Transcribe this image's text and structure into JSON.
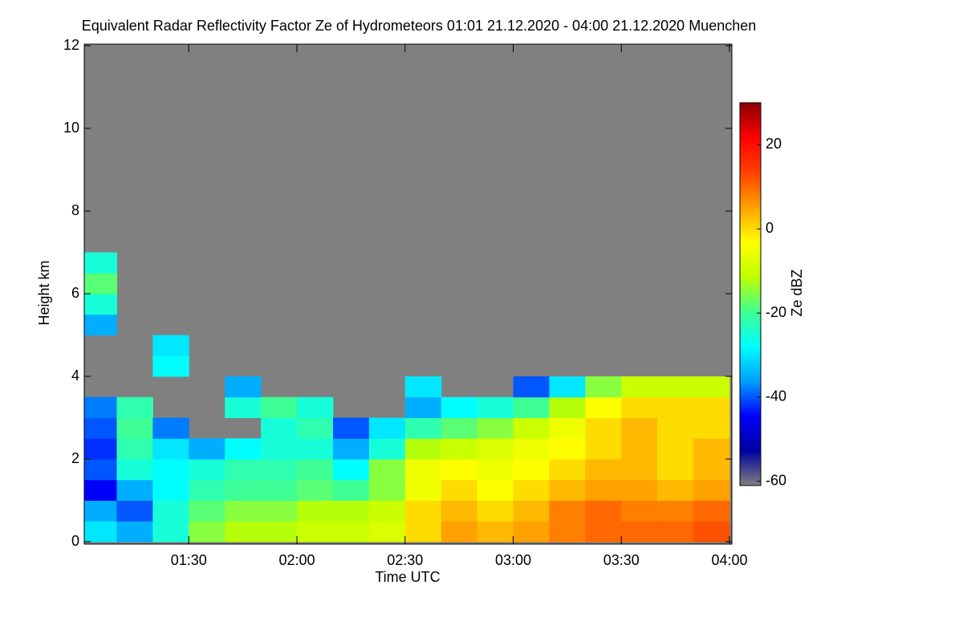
{
  "chart_data": {
    "type": "heatmap",
    "title": "Equivalent Radar Reflectivity Factor Ze of Hydrometeors   01:01 21.12.2020 - 04:00 21.12.2020 Muenchen",
    "x_label": "Time UTC",
    "y_label": "Height km",
    "colorbar_label": "Ze dBZ",
    "xlim": [
      "01:01",
      "04:00"
    ],
    "xticks": [
      "01:30",
      "02:00",
      "02:30",
      "03:00",
      "03:30",
      "04:00"
    ],
    "ylim": [
      0,
      12
    ],
    "yticks": [
      0,
      2,
      4,
      6,
      8,
      10,
      12
    ],
    "zlim": [
      -61,
      30
    ],
    "zticks": [
      -60,
      -40,
      -20,
      0,
      20
    ],
    "background": "#808080",
    "colorscale": [
      "#808080",
      "#0000a0",
      "#0000ff",
      "#00a0ff",
      "#00ffff",
      "#40ff90",
      "#c0ff00",
      "#ffff00",
      "#ffa000",
      "#ff4000",
      "#ff0000",
      "#8b0000"
    ],
    "x_bins": [
      "01:01",
      "01:10",
      "01:20",
      "01:30",
      "01:40",
      "01:50",
      "02:00",
      "02:10",
      "02:20",
      "02:30",
      "02:40",
      "02:50",
      "03:00",
      "03:10",
      "03:20",
      "03:30",
      "03:40",
      "03:50",
      "04:00"
    ],
    "y_bins": [
      0,
      0.5,
      1,
      1.5,
      2,
      2.5,
      3,
      3.5,
      4,
      4.5,
      5,
      5.5,
      6,
      6.5,
      7
    ],
    "values": [
      [
        -30,
        -35,
        -25,
        -15,
        -12,
        -12,
        -10,
        -10,
        -8,
        0,
        5,
        3,
        5,
        8,
        10,
        10,
        10,
        12
      ],
      [
        -35,
        -40,
        -25,
        -18,
        -15,
        -15,
        -12,
        -12,
        -10,
        0,
        3,
        0,
        3,
        8,
        10,
        8,
        8,
        10
      ],
      [
        -45,
        -35,
        -28,
        -22,
        -20,
        -20,
        -18,
        -20,
        -15,
        -5,
        0,
        -3,
        0,
        3,
        5,
        5,
        3,
        5
      ],
      [
        -40,
        -25,
        -28,
        -25,
        -22,
        -22,
        -20,
        -28,
        -15,
        -5,
        -3,
        -5,
        -3,
        0,
        3,
        3,
        0,
        3
      ],
      [
        -42,
        -22,
        -30,
        -35,
        -28,
        -25,
        -25,
        -35,
        -25,
        -12,
        -10,
        -8,
        -5,
        -3,
        0,
        3,
        0,
        3
      ],
      [
        -40,
        -20,
        -38,
        null,
        null,
        -25,
        -22,
        -40,
        -30,
        -22,
        -18,
        -15,
        -10,
        -5,
        0,
        3,
        0,
        0
      ],
      [
        -38,
        -22,
        null,
        null,
        -25,
        -20,
        -25,
        null,
        null,
        -35,
        -28,
        -25,
        -20,
        -12,
        -3,
        0,
        0,
        0
      ],
      [
        null,
        null,
        null,
        null,
        -35,
        null,
        null,
        null,
        null,
        -30,
        null,
        null,
        -40,
        -30,
        -15,
        -10,
        -10,
        -10
      ],
      [
        null,
        null,
        -28,
        null,
        null,
        null,
        null,
        null,
        null,
        null,
        null,
        null,
        null,
        null,
        null,
        null,
        null,
        null
      ],
      [
        null,
        null,
        -30,
        null,
        null,
        null,
        null,
        null,
        null,
        null,
        null,
        null,
        null,
        null,
        null,
        null,
        null,
        null
      ],
      [
        -35,
        null,
        null,
        null,
        null,
        null,
        null,
        null,
        null,
        null,
        null,
        null,
        null,
        null,
        null,
        null,
        null,
        null
      ],
      [
        -25,
        null,
        null,
        null,
        null,
        null,
        null,
        null,
        null,
        null,
        null,
        null,
        null,
        null,
        null,
        null,
        null,
        null
      ],
      [
        -18,
        null,
        null,
        null,
        null,
        null,
        null,
        null,
        null,
        null,
        null,
        null,
        null,
        null,
        null,
        null,
        null,
        null
      ],
      [
        -25,
        null,
        null,
        null,
        null,
        null,
        null,
        null,
        null,
        null,
        null,
        null,
        null,
        null,
        null,
        null,
        null,
        null
      ]
    ]
  }
}
